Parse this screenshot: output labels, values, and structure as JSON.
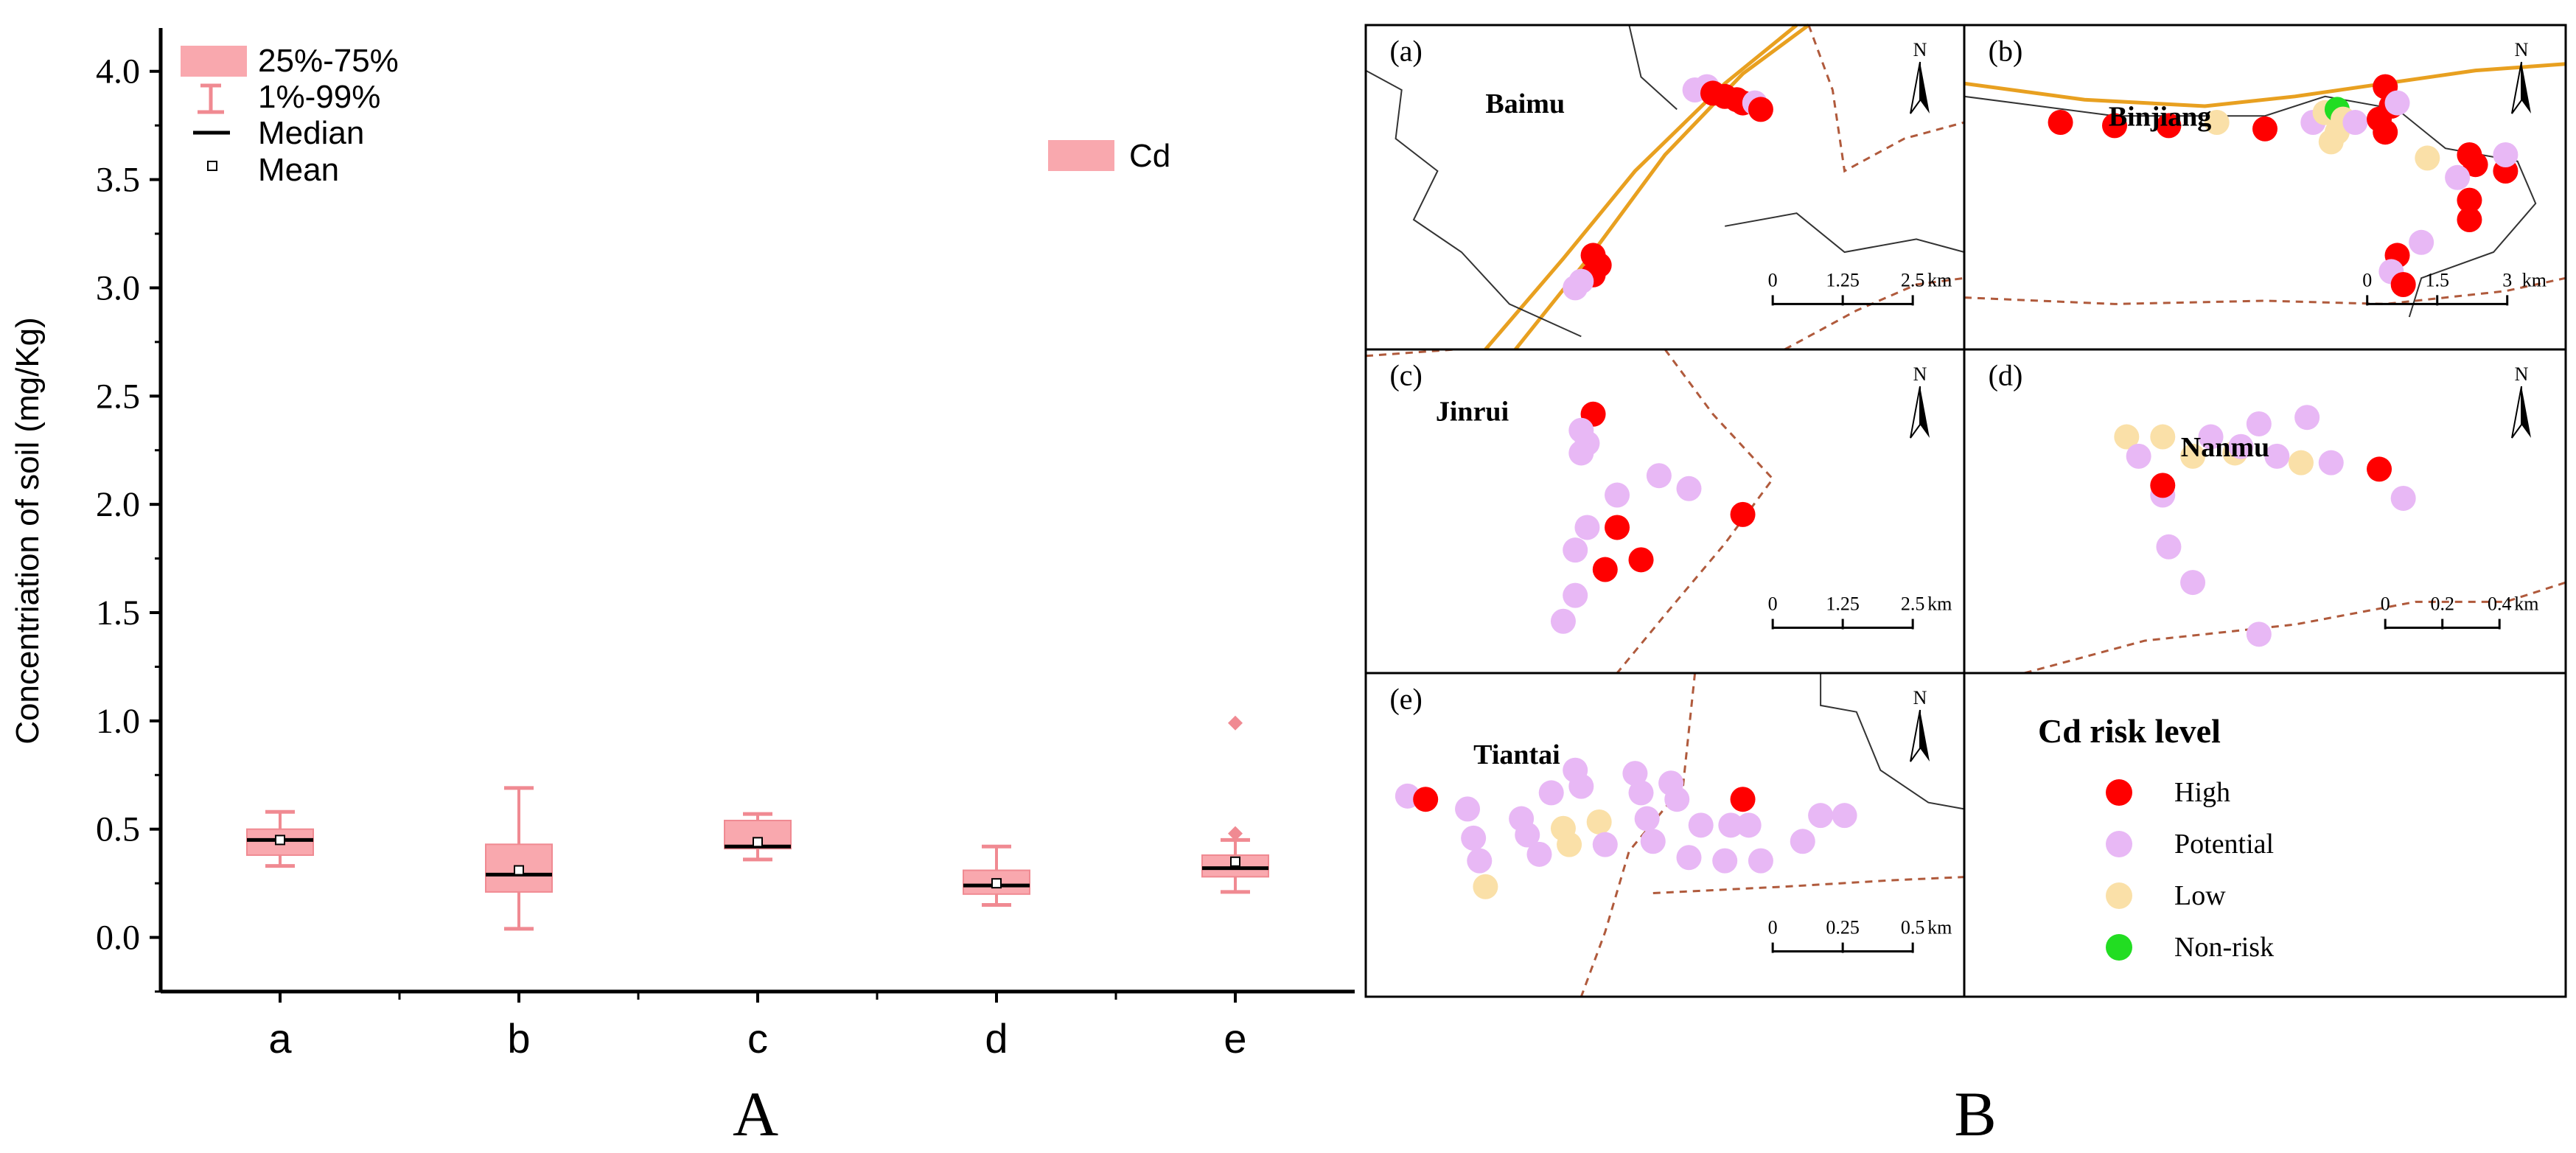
{
  "colors": {
    "box_fill": "#f9a8ae",
    "box_stroke": "#f08a92",
    "median": "#000000",
    "axis": "#000000",
    "high": "#ff0000",
    "potential": "#e8b8f5",
    "low": "#fae0a8",
    "nonrisk": "#22dd22",
    "road": "#e8a020",
    "boundary": "#b05a3c",
    "coast": "#333333"
  },
  "chart_data": [
    {
      "type": "box",
      "panel_label": "A",
      "ylabel": "Concentriation of soil (mg/Kg)",
      "xlabel": "",
      "ylim": [
        -0.25,
        4.2
      ],
      "yticks": [
        "0.0",
        "0.5",
        "1.0",
        "1.5",
        "2.0",
        "2.5",
        "3.0",
        "3.5",
        "4.0"
      ],
      "categories": [
        "a",
        "b",
        "c",
        "d",
        "e"
      ],
      "series_name": "Cd",
      "legend": {
        "box": "25%-75%",
        "whisker": "1%-99%",
        "median": "Median",
        "mean": "Mean"
      },
      "boxes": [
        {
          "category": "a",
          "q1": 0.38,
          "median": 0.45,
          "q3": 0.5,
          "p1": 0.33,
          "p99": 0.58,
          "mean": 0.45,
          "outliers": []
        },
        {
          "category": "b",
          "q1": 0.21,
          "median": 0.29,
          "q3": 0.43,
          "p1": 0.04,
          "p99": 0.69,
          "mean": 0.31,
          "outliers": []
        },
        {
          "category": "c",
          "q1": 0.41,
          "median": 0.42,
          "q3": 0.54,
          "p1": 0.36,
          "p99": 0.57,
          "mean": 0.44,
          "outliers": []
        },
        {
          "category": "d",
          "q1": 0.2,
          "median": 0.24,
          "q3": 0.31,
          "p1": 0.15,
          "p99": 0.42,
          "mean": 0.25,
          "outliers": []
        },
        {
          "category": "e",
          "q1": 0.28,
          "median": 0.32,
          "q3": 0.38,
          "p1": 0.21,
          "p99": 0.45,
          "mean": 0.35,
          "outliers": [
            0.48,
            0.99
          ]
        }
      ]
    },
    {
      "type": "map",
      "panel_label": "B",
      "legend_title": "Cd risk level",
      "risk_levels": [
        {
          "key": "high",
          "label": "High"
        },
        {
          "key": "potential",
          "label": "Potential"
        },
        {
          "key": "low",
          "label": "Low"
        },
        {
          "key": "nonrisk",
          "label": "Non-risk"
        }
      ],
      "panels": [
        {
          "id": "a",
          "tag": "(a)",
          "place": "Baimu",
          "north": "N",
          "scale": {
            "ticks": [
              "0",
              "1.25",
              "2.5"
            ],
            "unit": "km"
          },
          "sites": [
            {
              "risk": "potential",
              "x": 0.55,
              "y": 0.2
            },
            {
              "risk": "potential",
              "x": 0.57,
              "y": 0.19
            },
            {
              "risk": "high",
              "x": 0.58,
              "y": 0.21
            },
            {
              "risk": "high",
              "x": 0.6,
              "y": 0.22
            },
            {
              "risk": "high",
              "x": 0.62,
              "y": 0.23
            },
            {
              "risk": "high",
              "x": 0.63,
              "y": 0.24
            },
            {
              "risk": "potential",
              "x": 0.65,
              "y": 0.24
            },
            {
              "risk": "high",
              "x": 0.66,
              "y": 0.26
            },
            {
              "risk": "high",
              "x": 0.38,
              "y": 0.71
            },
            {
              "risk": "high",
              "x": 0.39,
              "y": 0.74
            },
            {
              "risk": "high",
              "x": 0.38,
              "y": 0.77
            },
            {
              "risk": "potential",
              "x": 0.36,
              "y": 0.79
            },
            {
              "risk": "potential",
              "x": 0.35,
              "y": 0.81
            }
          ]
        },
        {
          "id": "b",
          "tag": "(b)",
          "place": "Binjiang",
          "north": "N",
          "scale": {
            "ticks": [
              "0",
              "1.5",
              "3"
            ],
            "unit": "km"
          },
          "sites": [
            {
              "risk": "high",
              "x": 0.16,
              "y": 0.3
            },
            {
              "risk": "high",
              "x": 0.25,
              "y": 0.31
            },
            {
              "risk": "high",
              "x": 0.34,
              "y": 0.31
            },
            {
              "risk": "low",
              "x": 0.42,
              "y": 0.3
            },
            {
              "risk": "high",
              "x": 0.5,
              "y": 0.32
            },
            {
              "risk": "potential",
              "x": 0.58,
              "y": 0.3
            },
            {
              "risk": "low",
              "x": 0.6,
              "y": 0.27
            },
            {
              "risk": "low",
              "x": 0.62,
              "y": 0.33
            },
            {
              "risk": "nonrisk",
              "x": 0.62,
              "y": 0.26
            },
            {
              "risk": "low",
              "x": 0.63,
              "y": 0.29
            },
            {
              "risk": "potential",
              "x": 0.65,
              "y": 0.3
            },
            {
              "risk": "low",
              "x": 0.61,
              "y": 0.36
            },
            {
              "risk": "high",
              "x": 0.7,
              "y": 0.19
            },
            {
              "risk": "high",
              "x": 0.71,
              "y": 0.25
            },
            {
              "risk": "high",
              "x": 0.69,
              "y": 0.29
            },
            {
              "risk": "potential",
              "x": 0.72,
              "y": 0.24
            },
            {
              "risk": "high",
              "x": 0.7,
              "y": 0.33
            },
            {
              "risk": "low",
              "x": 0.77,
              "y": 0.41
            },
            {
              "risk": "high",
              "x": 0.84,
              "y": 0.4
            },
            {
              "risk": "high",
              "x": 0.85,
              "y": 0.43
            },
            {
              "risk": "potential",
              "x": 0.82,
              "y": 0.47
            },
            {
              "risk": "high",
              "x": 0.9,
              "y": 0.45
            },
            {
              "risk": "potential",
              "x": 0.9,
              "y": 0.4
            },
            {
              "risk": "high",
              "x": 0.84,
              "y": 0.54
            },
            {
              "risk": "high",
              "x": 0.84,
              "y": 0.6
            },
            {
              "risk": "potential",
              "x": 0.76,
              "y": 0.67
            },
            {
              "risk": "high",
              "x": 0.72,
              "y": 0.71
            },
            {
              "risk": "potential",
              "x": 0.71,
              "y": 0.76
            },
            {
              "risk": "high",
              "x": 0.73,
              "y": 0.8
            }
          ]
        },
        {
          "id": "c",
          "tag": "(c)",
          "place": "Jinrui",
          "north": "N",
          "scale": {
            "ticks": [
              "0",
              "1.25",
              "2.5"
            ],
            "unit": "km"
          },
          "sites": [
            {
              "risk": "high",
              "x": 0.38,
              "y": 0.2
            },
            {
              "risk": "potential",
              "x": 0.36,
              "y": 0.25
            },
            {
              "risk": "potential",
              "x": 0.37,
              "y": 0.29
            },
            {
              "risk": "potential",
              "x": 0.36,
              "y": 0.32
            },
            {
              "risk": "potential",
              "x": 0.49,
              "y": 0.39
            },
            {
              "risk": "potential",
              "x": 0.54,
              "y": 0.43
            },
            {
              "risk": "potential",
              "x": 0.42,
              "y": 0.45
            },
            {
              "risk": "high",
              "x": 0.63,
              "y": 0.51
            },
            {
              "risk": "potential",
              "x": 0.37,
              "y": 0.55
            },
            {
              "risk": "high",
              "x": 0.42,
              "y": 0.55
            },
            {
              "risk": "potential",
              "x": 0.35,
              "y": 0.62
            },
            {
              "risk": "high",
              "x": 0.46,
              "y": 0.65
            },
            {
              "risk": "high",
              "x": 0.4,
              "y": 0.68
            },
            {
              "risk": "potential",
              "x": 0.35,
              "y": 0.76
            },
            {
              "risk": "potential",
              "x": 0.33,
              "y": 0.84
            }
          ]
        },
        {
          "id": "d",
          "tag": "(d)",
          "place": "Nanmu",
          "north": "N",
          "scale": {
            "ticks": [
              "0",
              "0.2",
              "0.4"
            ],
            "unit": "km"
          },
          "sites": [
            {
              "risk": "low",
              "x": 0.27,
              "y": 0.27
            },
            {
              "risk": "low",
              "x": 0.33,
              "y": 0.27
            },
            {
              "risk": "potential",
              "x": 0.29,
              "y": 0.33
            },
            {
              "risk": "low",
              "x": 0.38,
              "y": 0.33
            },
            {
              "risk": "potential",
              "x": 0.41,
              "y": 0.27
            },
            {
              "risk": "low",
              "x": 0.45,
              "y": 0.32
            },
            {
              "risk": "potential",
              "x": 0.46,
              "y": 0.3
            },
            {
              "risk": "potential",
              "x": 0.49,
              "y": 0.23
            },
            {
              "risk": "potential",
              "x": 0.52,
              "y": 0.33
            },
            {
              "risk": "low",
              "x": 0.56,
              "y": 0.35
            },
            {
              "risk": "potential",
              "x": 0.57,
              "y": 0.21
            },
            {
              "risk": "potential",
              "x": 0.61,
              "y": 0.35
            },
            {
              "risk": "potential",
              "x": 0.33,
              "y": 0.45
            },
            {
              "risk": "high",
              "x": 0.33,
              "y": 0.42
            },
            {
              "risk": "high",
              "x": 0.69,
              "y": 0.37
            },
            {
              "risk": "potential",
              "x": 0.73,
              "y": 0.46
            },
            {
              "risk": "potential",
              "x": 0.34,
              "y": 0.61
            },
            {
              "risk": "potential",
              "x": 0.38,
              "y": 0.72
            },
            {
              "risk": "potential",
              "x": 0.49,
              "y": 0.88
            }
          ]
        },
        {
          "id": "e",
          "tag": "(e)",
          "place": "Tiantai",
          "north": "N",
          "scale": {
            "ticks": [
              "0",
              "0.25",
              "0.5"
            ],
            "unit": "km"
          },
          "sites": [
            {
              "risk": "potential",
              "x": 0.07,
              "y": 0.38
            },
            {
              "risk": "high",
              "x": 0.1,
              "y": 0.39
            },
            {
              "risk": "potential",
              "x": 0.17,
              "y": 0.42
            },
            {
              "risk": "potential",
              "x": 0.18,
              "y": 0.51
            },
            {
              "risk": "potential",
              "x": 0.19,
              "y": 0.58
            },
            {
              "risk": "low",
              "x": 0.2,
              "y": 0.66
            },
            {
              "risk": "potential",
              "x": 0.26,
              "y": 0.45
            },
            {
              "risk": "potential",
              "x": 0.27,
              "y": 0.5
            },
            {
              "risk": "potential",
              "x": 0.29,
              "y": 0.56
            },
            {
              "risk": "potential",
              "x": 0.31,
              "y": 0.37
            },
            {
              "risk": "low",
              "x": 0.33,
              "y": 0.48
            },
            {
              "risk": "low",
              "x": 0.34,
              "y": 0.53
            },
            {
              "risk": "potential",
              "x": 0.35,
              "y": 0.3
            },
            {
              "risk": "potential",
              "x": 0.36,
              "y": 0.35
            },
            {
              "risk": "low",
              "x": 0.39,
              "y": 0.46
            },
            {
              "risk": "potential",
              "x": 0.4,
              "y": 0.53
            },
            {
              "risk": "potential",
              "x": 0.45,
              "y": 0.31
            },
            {
              "risk": "potential",
              "x": 0.46,
              "y": 0.37
            },
            {
              "risk": "potential",
              "x": 0.47,
              "y": 0.45
            },
            {
              "risk": "potential",
              "x": 0.48,
              "y": 0.52
            },
            {
              "risk": "potential",
              "x": 0.51,
              "y": 0.34
            },
            {
              "risk": "potential",
              "x": 0.52,
              "y": 0.39
            },
            {
              "risk": "potential",
              "x": 0.56,
              "y": 0.47
            },
            {
              "risk": "potential",
              "x": 0.61,
              "y": 0.47
            },
            {
              "risk": "potential",
              "x": 0.64,
              "y": 0.47
            },
            {
              "risk": "high",
              "x": 0.63,
              "y": 0.39
            },
            {
              "risk": "potential",
              "x": 0.6,
              "y": 0.58
            },
            {
              "risk": "potential",
              "x": 0.54,
              "y": 0.57
            },
            {
              "risk": "potential",
              "x": 0.66,
              "y": 0.58
            },
            {
              "risk": "potential",
              "x": 0.73,
              "y": 0.52
            },
            {
              "risk": "potential",
              "x": 0.76,
              "y": 0.44
            },
            {
              "risk": "potential",
              "x": 0.8,
              "y": 0.44
            }
          ]
        }
      ]
    }
  ]
}
